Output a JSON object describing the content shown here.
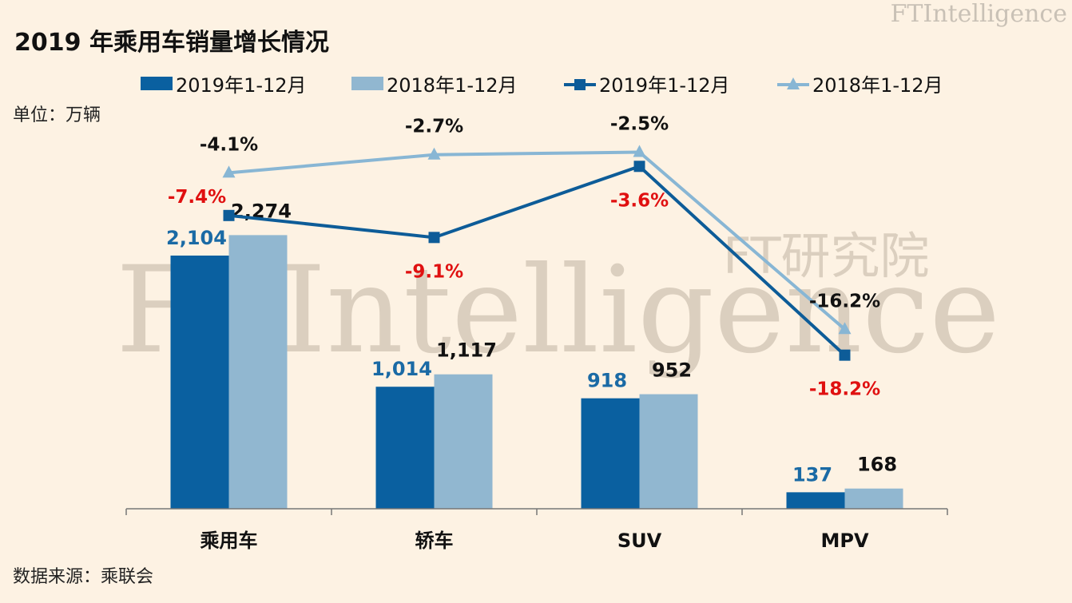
{
  "title": "2019 年乘用车销量增长情况",
  "brand": "FTIntelligence",
  "brand_sub": "FT研究院",
  "watermark": "FTIntelligence",
  "watermark_sub": "FT研究院",
  "unit": "单位：万辆",
  "source": "数据来源：乘联会",
  "colors": {
    "bar2019": "#0a60a0",
    "bar2018": "#91b7d0",
    "line2019": "#0d5c98",
    "line2018": "#88b6d4",
    "pct2019": "#e01010",
    "pct2018": "#111111",
    "val2019": "#1a6aa5",
    "val2018": "#111111"
  },
  "chart_data": {
    "type": "bar",
    "categories": [
      "乘用车",
      "轿车",
      "SUV",
      "MPV"
    ],
    "series": [
      {
        "name": "2019年1-12月",
        "kind": "bar",
        "values": [
          2104,
          1014,
          918,
          137
        ],
        "labels": [
          "2,104",
          "1,014",
          "918",
          "137"
        ]
      },
      {
        "name": "2018年1-12月",
        "kind": "bar",
        "values": [
          2274,
          1117,
          952,
          168
        ],
        "labels": [
          "2,274",
          "1,117",
          "952",
          "168"
        ]
      },
      {
        "name": "2019年1-12月",
        "kind": "line",
        "values": [
          -7.4,
          -9.1,
          -3.6,
          -18.2
        ],
        "labels": [
          "-7.4%",
          "-9.1%",
          "-3.6%",
          "-18.2%"
        ]
      },
      {
        "name": "2018年1-12月",
        "kind": "line",
        "values": [
          -4.1,
          -2.7,
          -2.5,
          -16.2
        ],
        "labels": [
          "-4.1%",
          "-2.7%",
          "-2.5%",
          "-16.2%"
        ]
      }
    ],
    "legend_position": "top",
    "grid": false
  }
}
